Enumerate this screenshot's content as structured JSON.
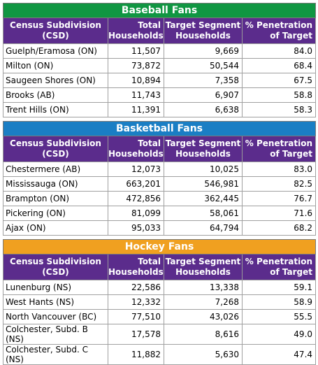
{
  "colors": {
    "baseball_banner": "#109642",
    "basketball_banner": "#1a7ec4",
    "hockey_banner": "#f0a020",
    "header_bg": "#5b2c8c"
  },
  "headers": {
    "col1_line1": "Census Subdivision",
    "col1_line2": "(CSD)",
    "col2_line1": "Total",
    "col2_line2": "Households",
    "col3_line1": "Target Segment",
    "col3_line2": "Households",
    "col4_line1": "% Penetration",
    "col4_line2": "of Target"
  },
  "tables": [
    {
      "title": "Baseball Fans",
      "rows": [
        {
          "csd": "Guelph/Eramosa (ON)",
          "total": "11,507",
          "target": "9,669",
          "pct": "84.0"
        },
        {
          "csd": "Milton (ON)",
          "total": "73,872",
          "target": "50,544",
          "pct": "68.4"
        },
        {
          "csd": "Saugeen Shores (ON)",
          "total": "10,894",
          "target": "7,358",
          "pct": "67.5"
        },
        {
          "csd": "Brooks (AB)",
          "total": "11,743",
          "target": "6,907",
          "pct": "58.8"
        },
        {
          "csd": "Trent Hills (ON)",
          "total": "11,391",
          "target": "6,638",
          "pct": "58.3"
        }
      ]
    },
    {
      "title": "Basketball Fans",
      "rows": [
        {
          "csd": "Chestermere (AB)",
          "total": "12,073",
          "target": "10,025",
          "pct": "83.0"
        },
        {
          "csd": "Mississauga (ON)",
          "total": "663,201",
          "target": "546,981",
          "pct": "82.5"
        },
        {
          "csd": "Brampton (ON)",
          "total": "472,856",
          "target": "362,445",
          "pct": "76.7"
        },
        {
          "csd": "Pickering (ON)",
          "total": "81,099",
          "target": "58,061",
          "pct": "71.6"
        },
        {
          "csd": "Ajax (ON)",
          "total": "95,033",
          "target": "64,794",
          "pct": "68.2"
        }
      ]
    },
    {
      "title": "Hockey Fans",
      "rows": [
        {
          "csd": "Lunenburg (NS)",
          "total": "22,586",
          "target": "13,338",
          "pct": "59.1"
        },
        {
          "csd": "West Hants (NS)",
          "total": "12,332",
          "target": "7,268",
          "pct": "58.9"
        },
        {
          "csd": "North Vancouver (BC)",
          "total": "77,510",
          "target": "43,026",
          "pct": "55.5"
        },
        {
          "csd": "Colchester, Subd. B (NS)",
          "total": "17,578",
          "target": "8,616",
          "pct": "49.0"
        },
        {
          "csd": "Colchester, Subd. C (NS)",
          "total": "11,882",
          "target": "5,630",
          "pct": "47.4"
        }
      ]
    }
  ]
}
